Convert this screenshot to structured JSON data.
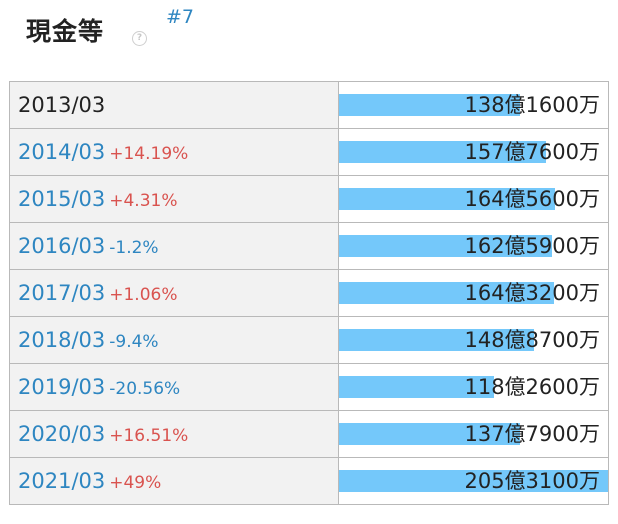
{
  "header": {
    "title": "現金等",
    "help_glyph": "?",
    "rank": "#7"
  },
  "table": {
    "rows": [
      {
        "period": "2013/03",
        "change": "",
        "value": "138億1600万",
        "amount": 138.16
      },
      {
        "period": "2014/03",
        "change": "+14.19%",
        "value": "157億7600万",
        "amount": 157.76
      },
      {
        "period": "2015/03",
        "change": "+4.31%",
        "value": "164億5600万",
        "amount": 164.56
      },
      {
        "period": "2016/03",
        "change": "-1.2%",
        "value": "162億5900万",
        "amount": 162.59
      },
      {
        "period": "2017/03",
        "change": "+1.06%",
        "value": "164億3200万",
        "amount": 164.32
      },
      {
        "period": "2018/03",
        "change": "-9.4%",
        "value": "148億8700万",
        "amount": 148.87
      },
      {
        "period": "2019/03",
        "change": "-20.56%",
        "value": "118億2600万",
        "amount": 118.26
      },
      {
        "period": "2020/03",
        "change": "+16.51%",
        "value": "137億7900万",
        "amount": 137.79
      },
      {
        "period": "2021/03",
        "change": "+49%",
        "value": "205億3100万",
        "amount": 205.31
      }
    ]
  },
  "colors": {
    "bar": "#74c8fa",
    "positive": "#d9534f",
    "negative": "#2e86c1",
    "link": "#2e86c1"
  }
}
